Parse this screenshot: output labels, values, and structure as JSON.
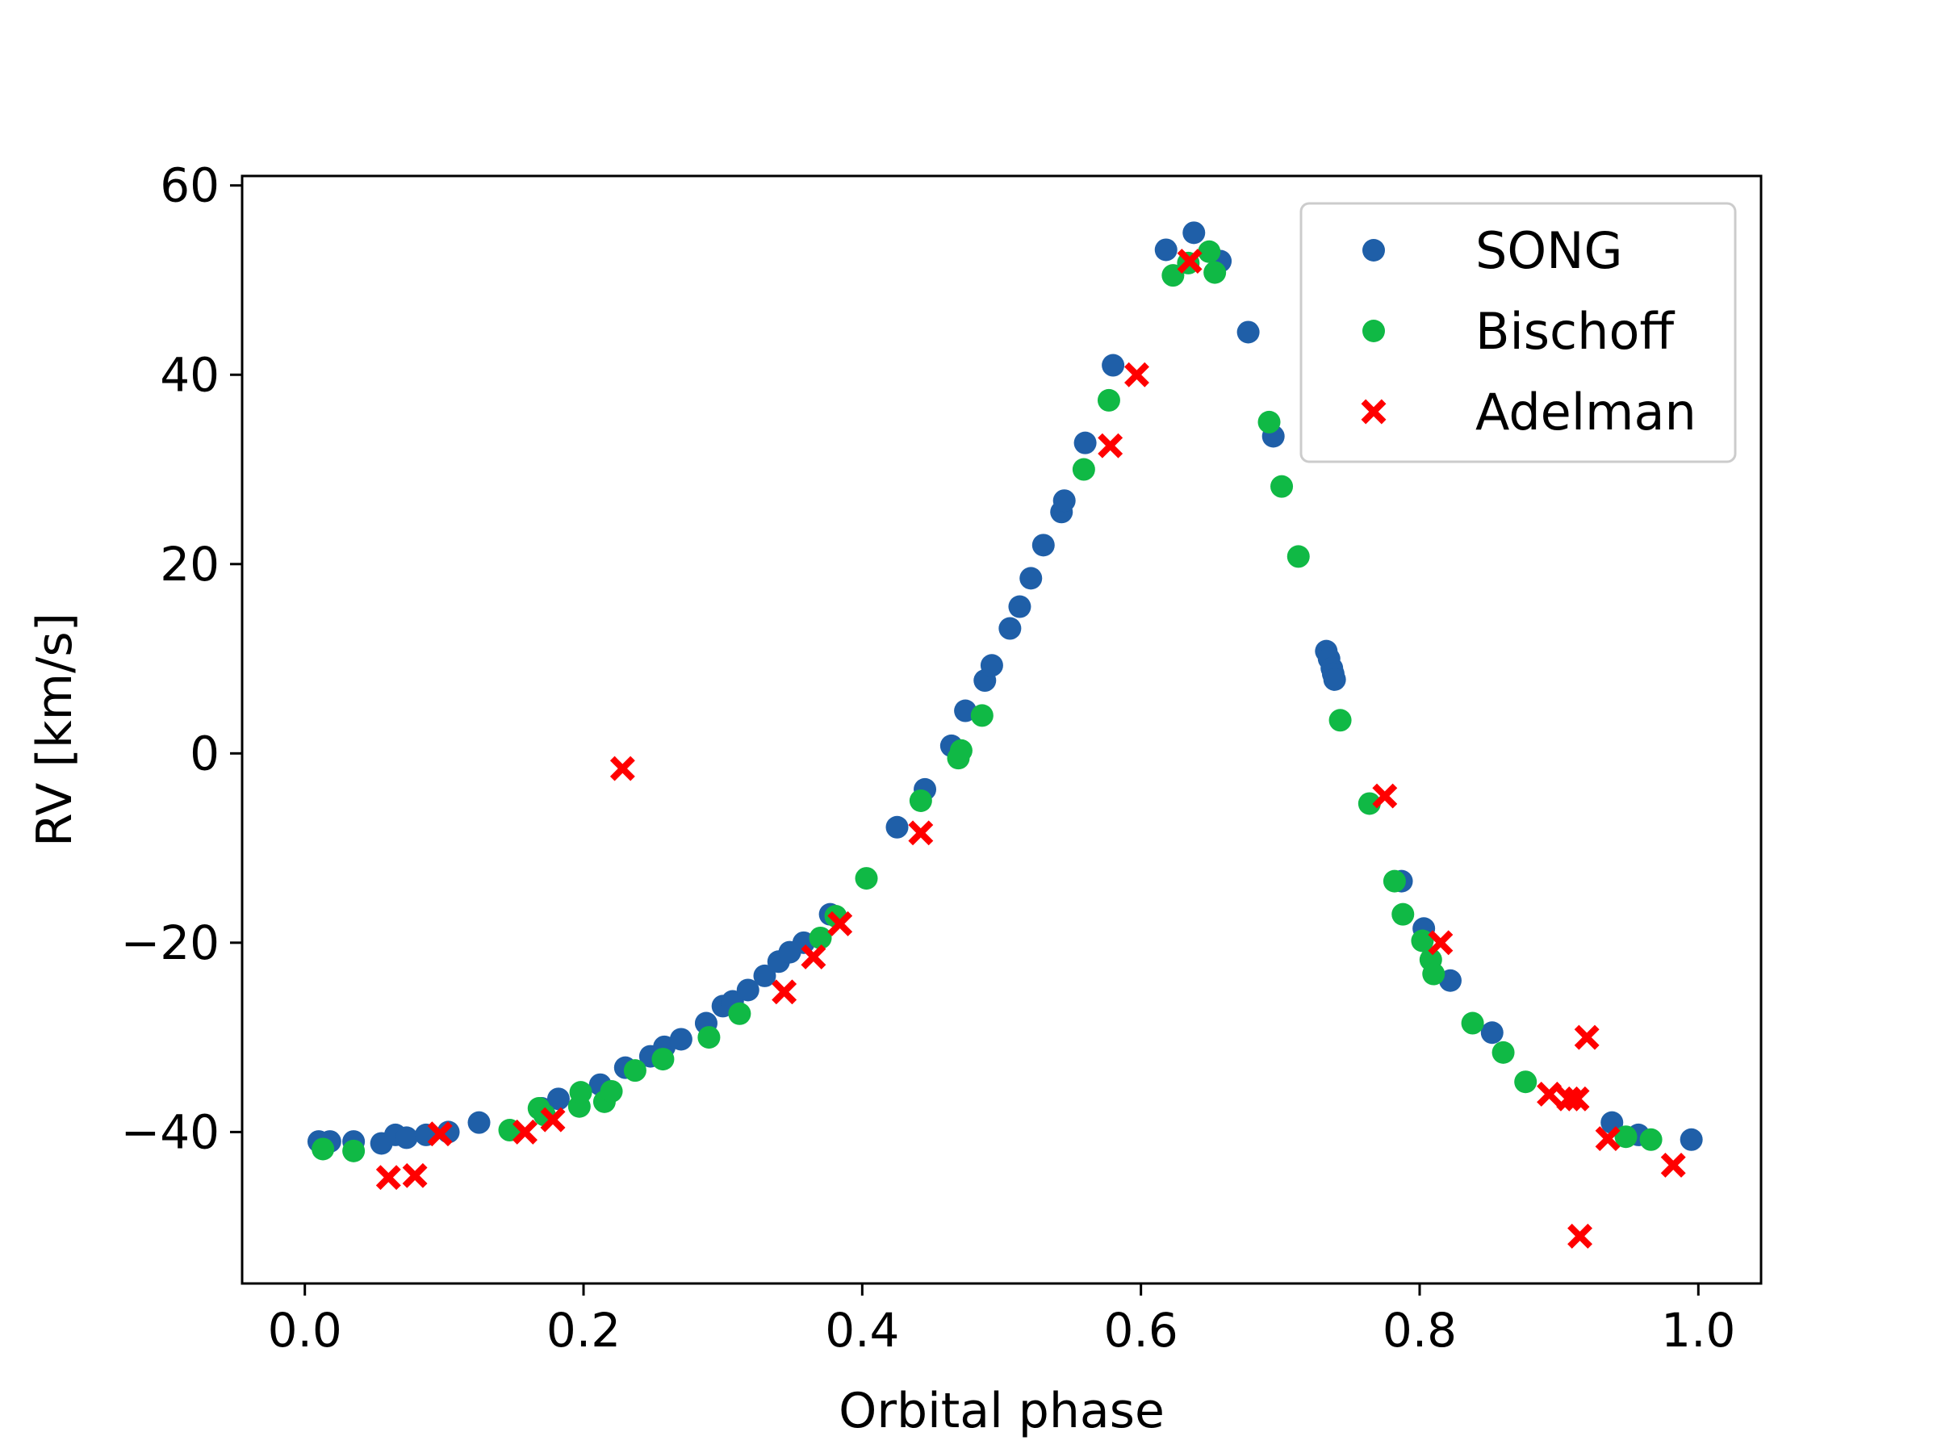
{
  "chart_data": {
    "type": "scatter",
    "title": "",
    "xlabel": "Orbital phase",
    "ylabel": "RV [km/s]",
    "xlim": [
      -0.045,
      1.045
    ],
    "ylim": [
      -56,
      61
    ],
    "xticks": [
      0.0,
      0.2,
      0.4,
      0.6,
      0.8,
      1.0
    ],
    "xtick_labels": [
      "0.0",
      "0.2",
      "0.4",
      "0.6",
      "0.8",
      "1.0"
    ],
    "yticks": [
      -40,
      -20,
      0,
      20,
      40,
      60
    ],
    "ytick_labels": [
      "−40",
      "−20",
      "0",
      "20",
      "40",
      "60"
    ],
    "grid": false,
    "legend_position": "top-right",
    "series": [
      {
        "name": "SONG",
        "marker": "circle",
        "color": "#1f5fa8",
        "points": [
          [
            0.01,
            -41
          ],
          [
            0.018,
            -41
          ],
          [
            0.035,
            -41
          ],
          [
            0.055,
            -41.2
          ],
          [
            0.065,
            -40.3
          ],
          [
            0.073,
            -40.6
          ],
          [
            0.087,
            -40.3
          ],
          [
            0.103,
            -40
          ],
          [
            0.125,
            -39
          ],
          [
            0.17,
            -37.5
          ],
          [
            0.182,
            -36.5
          ],
          [
            0.212,
            -35
          ],
          [
            0.23,
            -33.2
          ],
          [
            0.248,
            -32
          ],
          [
            0.258,
            -31
          ],
          [
            0.27,
            -30.2
          ],
          [
            0.288,
            -28.5
          ],
          [
            0.3,
            -26.7
          ],
          [
            0.307,
            -26.2
          ],
          [
            0.318,
            -25
          ],
          [
            0.33,
            -23.5
          ],
          [
            0.34,
            -22
          ],
          [
            0.348,
            -21
          ],
          [
            0.358,
            -20
          ],
          [
            0.377,
            -17
          ],
          [
            0.425,
            -7.8
          ],
          [
            0.445,
            -3.8
          ],
          [
            0.464,
            0.8
          ],
          [
            0.474,
            4.5
          ],
          [
            0.488,
            7.7
          ],
          [
            0.493,
            9.3
          ],
          [
            0.506,
            13.2
          ],
          [
            0.513,
            15.5
          ],
          [
            0.521,
            18.5
          ],
          [
            0.53,
            22
          ],
          [
            0.543,
            25.5
          ],
          [
            0.545,
            26.7
          ],
          [
            0.56,
            32.8
          ],
          [
            0.58,
            41
          ],
          [
            0.618,
            53.2
          ],
          [
            0.638,
            55
          ],
          [
            0.657,
            52
          ],
          [
            0.677,
            44.5
          ],
          [
            0.695,
            33.5
          ],
          [
            0.733,
            10.8
          ],
          [
            0.735,
            10
          ],
          [
            0.737,
            9
          ],
          [
            0.738,
            8.4
          ],
          [
            0.739,
            7.8
          ],
          [
            0.787,
            -13.5
          ],
          [
            0.803,
            -18.5
          ],
          [
            0.822,
            -24
          ],
          [
            0.852,
            -29.5
          ],
          [
            0.938,
            -39
          ],
          [
            0.957,
            -40.3
          ],
          [
            0.995,
            -40.8
          ]
        ]
      },
      {
        "name": "Bischoff",
        "marker": "circle",
        "color": "#10b945",
        "points": [
          [
            0.013,
            -41.8
          ],
          [
            0.035,
            -42
          ],
          [
            0.147,
            -39.8
          ],
          [
            0.168,
            -37.5
          ],
          [
            0.172,
            -38.2
          ],
          [
            0.197,
            -37.3
          ],
          [
            0.198,
            -35.8
          ],
          [
            0.215,
            -36.8
          ],
          [
            0.22,
            -35.7
          ],
          [
            0.237,
            -33.5
          ],
          [
            0.257,
            -32.3
          ],
          [
            0.29,
            -30
          ],
          [
            0.312,
            -27.5
          ],
          [
            0.37,
            -19.5
          ],
          [
            0.381,
            -17.2
          ],
          [
            0.403,
            -13.2
          ],
          [
            0.442,
            -5
          ],
          [
            0.469,
            -0.5
          ],
          [
            0.471,
            0.3
          ],
          [
            0.486,
            4
          ],
          [
            0.559,
            30
          ],
          [
            0.577,
            37.3
          ],
          [
            0.623,
            50.5
          ],
          [
            0.634,
            51.8
          ],
          [
            0.649,
            53
          ],
          [
            0.653,
            50.8
          ],
          [
            0.692,
            35
          ],
          [
            0.701,
            28.2
          ],
          [
            0.713,
            20.8
          ],
          [
            0.743,
            3.5
          ],
          [
            0.764,
            -5.3
          ],
          [
            0.782,
            -13.5
          ],
          [
            0.788,
            -17
          ],
          [
            0.802,
            -19.8
          ],
          [
            0.808,
            -21.8
          ],
          [
            0.81,
            -23.3
          ],
          [
            0.838,
            -28.5
          ],
          [
            0.86,
            -31.6
          ],
          [
            0.876,
            -34.7
          ],
          [
            0.948,
            -40.5
          ],
          [
            0.966,
            -40.8
          ]
        ]
      },
      {
        "name": "Adelman",
        "marker": "x",
        "color": "#ff0000",
        "points": [
          [
            0.06,
            -44.8
          ],
          [
            0.079,
            -44.6
          ],
          [
            0.097,
            -40.2
          ],
          [
            0.158,
            -40
          ],
          [
            0.178,
            -38.7
          ],
          [
            0.228,
            -1.6
          ],
          [
            0.344,
            -25.2
          ],
          [
            0.365,
            -21.5
          ],
          [
            0.384,
            -18
          ],
          [
            0.442,
            -8.4
          ],
          [
            0.578,
            32.5
          ],
          [
            0.597,
            40
          ],
          [
            0.635,
            52
          ],
          [
            0.775,
            -4.5
          ],
          [
            0.815,
            -20
          ],
          [
            0.893,
            -36
          ],
          [
            0.907,
            -36.5
          ],
          [
            0.913,
            -36.5
          ],
          [
            0.915,
            -51
          ],
          [
            0.92,
            -30
          ],
          [
            0.935,
            -40.7
          ],
          [
            0.982,
            -43.5
          ]
        ]
      }
    ]
  }
}
